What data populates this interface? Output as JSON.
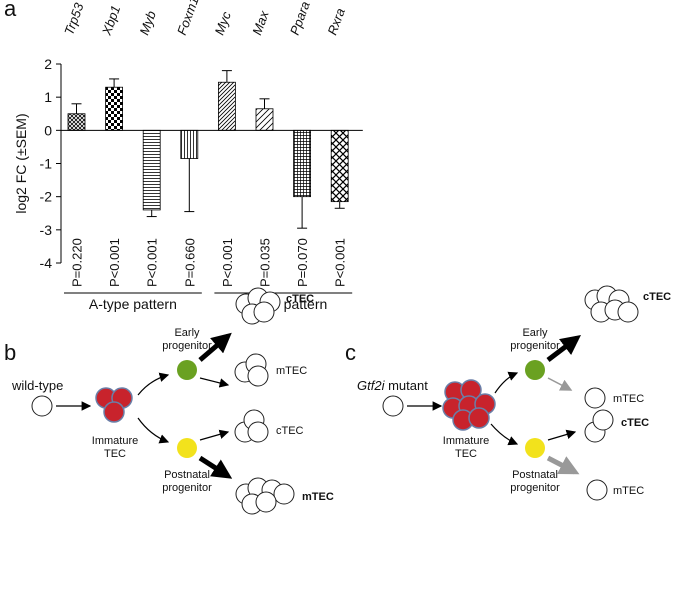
{
  "chart_data": {
    "type": "bar",
    "panel": "a",
    "categories": [
      "Trp53",
      "Xbp1",
      "Myb",
      "Foxm1",
      "Myc",
      "Max",
      "Ppara",
      "Rxra"
    ],
    "values": [
      0.5,
      1.3,
      -2.4,
      -0.85,
      1.45,
      0.65,
      -2.0,
      -2.15
    ],
    "errors": [
      0.3,
      0.25,
      0.2,
      1.6,
      0.35,
      0.3,
      0.95,
      0.2
    ],
    "pvalues": [
      "P=0.220",
      "P<0.001",
      "P<0.001",
      "P=0.660",
      "P<0.001",
      "P=0.035",
      "P=0.070",
      "P<0.001"
    ],
    "patterns": [
      "crosshatch",
      "checker",
      "hlines",
      "vlines",
      "diag",
      "diag-wide",
      "grid",
      "diag-cross"
    ],
    "ylabel": "log2 FC (±SEM)",
    "ylim": [
      -4,
      2
    ],
    "yticks": [
      -4,
      -3,
      -2,
      -1,
      0,
      1,
      2
    ],
    "groups": [
      {
        "label": "A-type pattern",
        "from": 0,
        "to": 3
      },
      {
        "label": "B-type pattern",
        "from": 4,
        "to": 7
      }
    ]
  },
  "panels": {
    "b": {
      "label": "b",
      "title": "wild-type",
      "immature": [
        "Immature",
        "TEC"
      ],
      "early": [
        "Early",
        "progenitor"
      ],
      "postnatal": [
        "Postnatal",
        "progenitor"
      ],
      "out1": "cTEC",
      "out2": "mTEC",
      "out3": "cTEC",
      "out4": "mTEC"
    },
    "c": {
      "label": "c",
      "title_italic": "Gtf2i",
      "title_rest": " mutant",
      "immature": [
        "Immature",
        "TEC"
      ],
      "early": [
        "Early",
        "progenitor"
      ],
      "postnatal": [
        "Postnatal",
        "progenitor"
      ],
      "out1": "cTEC",
      "out2": "mTEC",
      "out3": "cTEC",
      "out4": "mTEC"
    }
  }
}
